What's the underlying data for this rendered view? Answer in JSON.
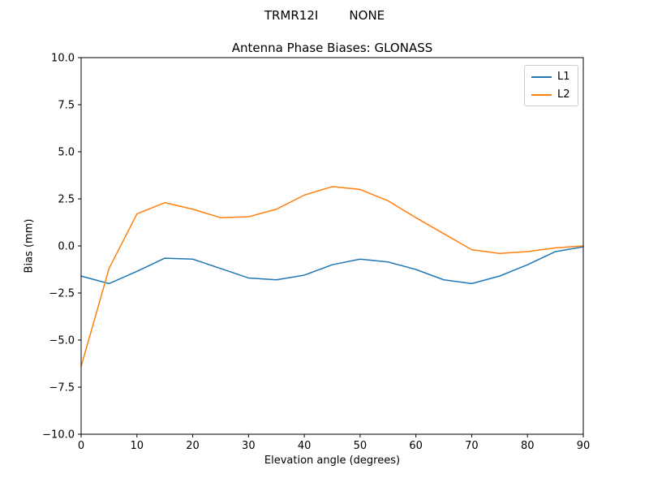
{
  "chart_data": {
    "type": "line",
    "suptitle": "TRMR12I        NONE",
    "title": "Antenna Phase Biases: GLONASS",
    "xlabel": "Elevation angle (degrees)",
    "ylabel": "Bias (mm)",
    "xlim": [
      0,
      90
    ],
    "ylim": [
      -10,
      10
    ],
    "grid": false,
    "legend_position": "upper right",
    "x": [
      0,
      5,
      10,
      15,
      20,
      25,
      30,
      35,
      40,
      45,
      50,
      55,
      60,
      65,
      70,
      75,
      80,
      85,
      90
    ],
    "series": [
      {
        "name": "L1",
        "color": "#1f77b4",
        "values": [
          -1.6,
          -2.0,
          -1.35,
          -0.65,
          -0.7,
          -1.2,
          -1.7,
          -1.8,
          -1.55,
          -1.0,
          -0.7,
          -0.85,
          -1.25,
          -1.8,
          -2.0,
          -1.6,
          -1.0,
          -0.3,
          -0.05
        ]
      },
      {
        "name": "L2",
        "color": "#ff7f0e",
        "values": [
          -6.4,
          -1.2,
          1.7,
          2.3,
          1.95,
          1.5,
          1.55,
          1.95,
          2.7,
          3.15,
          3.0,
          2.4,
          1.5,
          0.65,
          -0.2,
          -0.4,
          -0.3,
          -0.1,
          0.0
        ]
      }
    ],
    "xticks": {
      "values": [
        0,
        10,
        20,
        30,
        40,
        50,
        60,
        70,
        80,
        90
      ],
      "labels": [
        "0",
        "10",
        "20",
        "30",
        "40",
        "50",
        "60",
        "70",
        "80",
        "90"
      ]
    },
    "yticks": {
      "values": [
        -10,
        -7.5,
        -5,
        -2.5,
        0,
        2.5,
        5,
        7.5,
        10
      ],
      "labels": [
        "−10.0",
        "−7.5",
        "−5.0",
        "−2.5",
        "0.0",
        "2.5",
        "5.0",
        "7.5",
        "10.0"
      ]
    }
  }
}
